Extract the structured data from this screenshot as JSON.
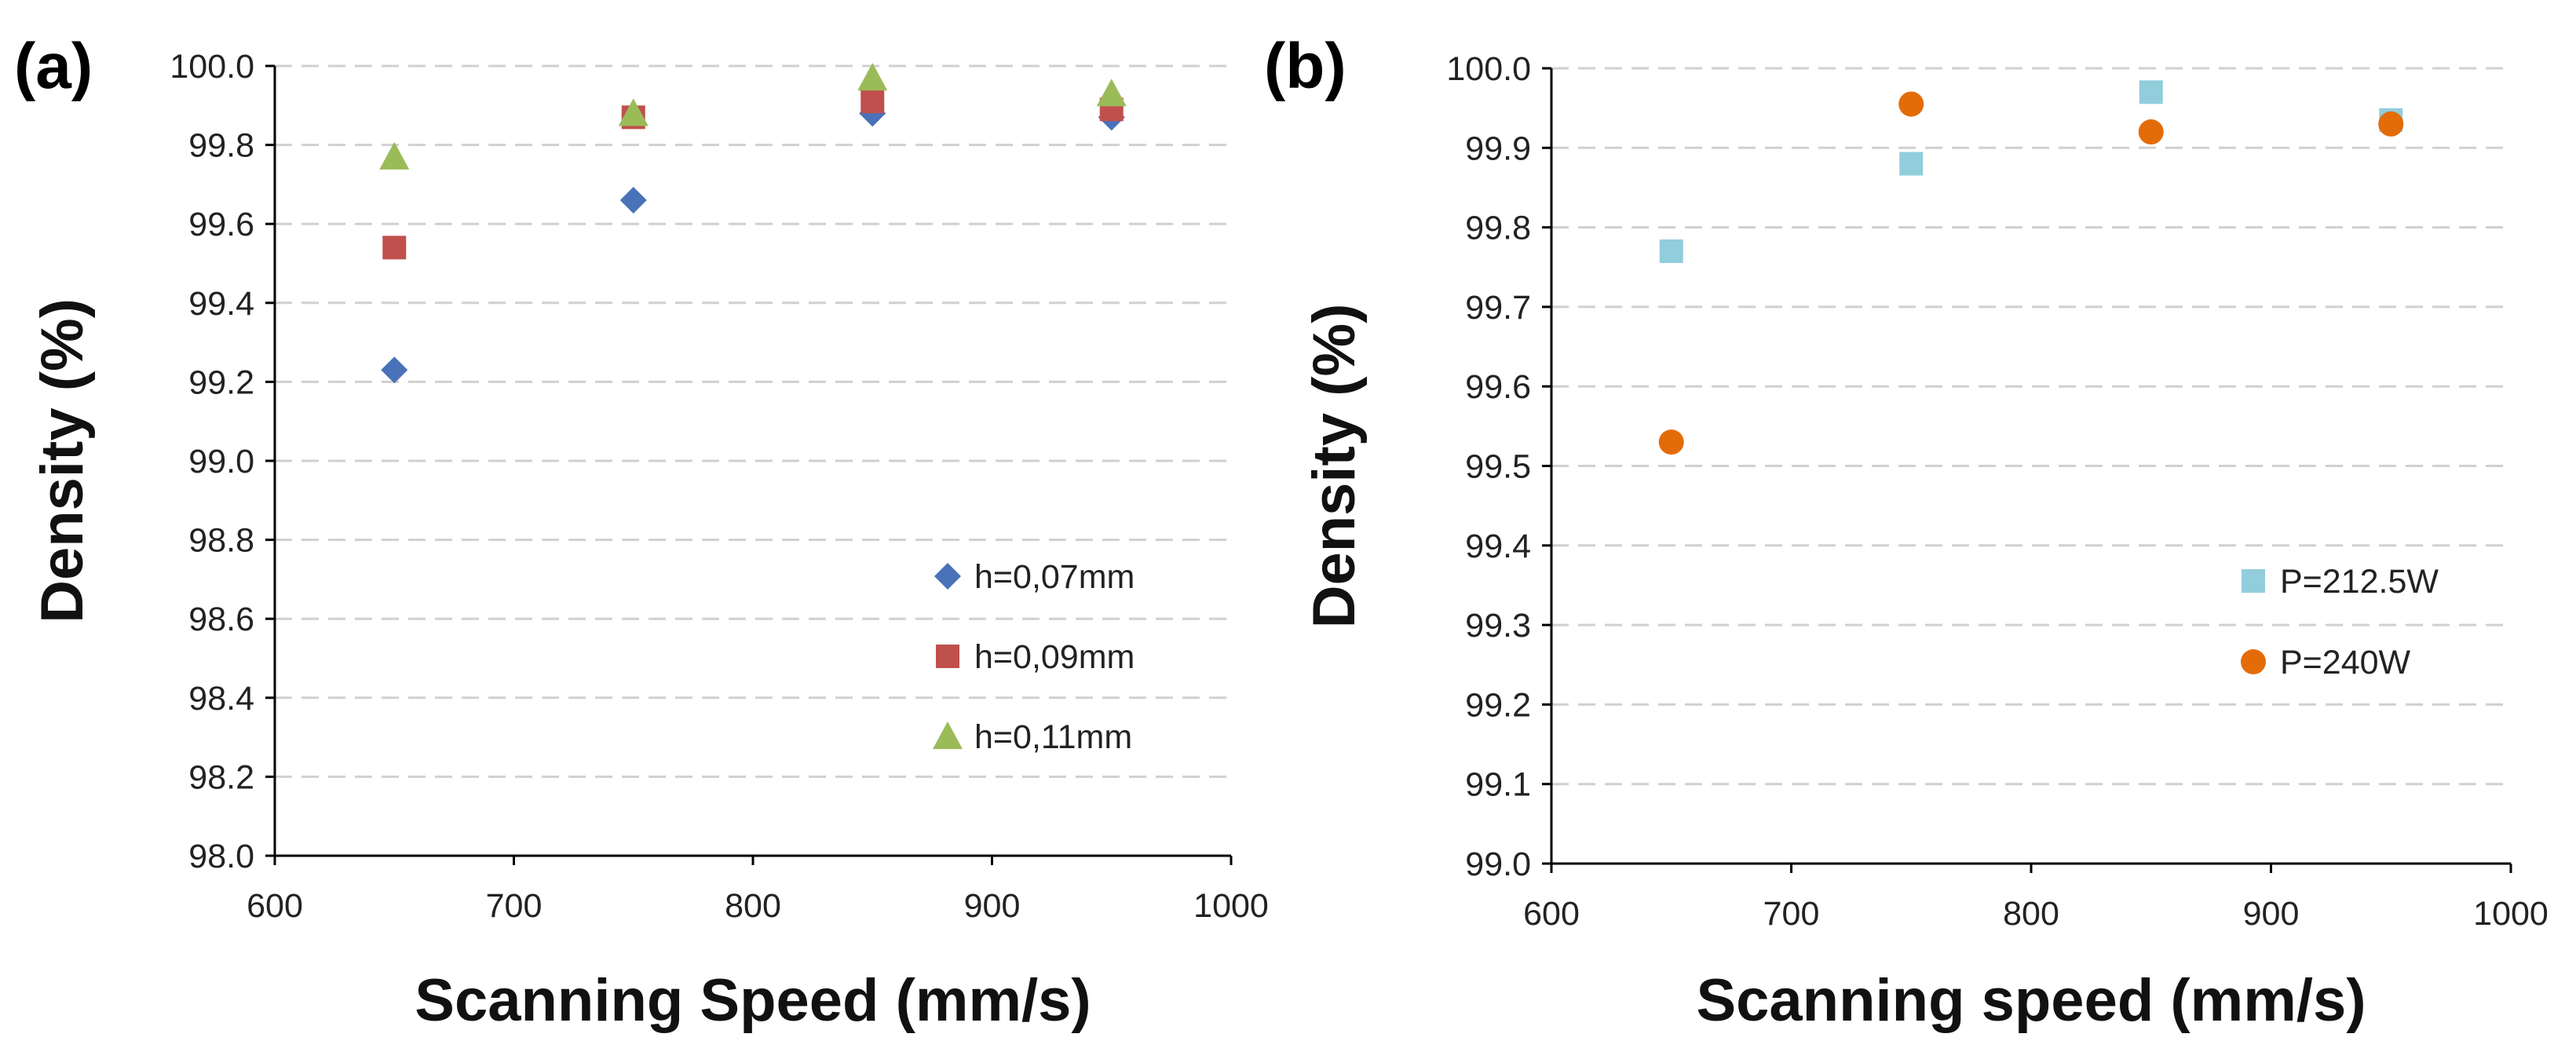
{
  "chart_data": [
    {
      "id": "a",
      "type": "scatter",
      "panel_label": "(a)",
      "xlabel": "Scanning Speed (mm/s)",
      "ylabel": "Density (%)",
      "xlim": [
        600,
        1000
      ],
      "ylim": [
        98.0,
        100.0
      ],
      "xticks": [
        600,
        700,
        800,
        900,
        1000
      ],
      "yticks": [
        98.0,
        98.2,
        98.4,
        98.6,
        98.8,
        99.0,
        99.2,
        99.4,
        99.6,
        99.8,
        100.0
      ],
      "ytick_decimals": 1,
      "grid": "horizontal-dashed",
      "legend_position": "lower-right",
      "series": [
        {
          "name": "h=0,07mm",
          "marker": "diamond",
          "color": "#4a72b8",
          "x": [
            650,
            750,
            850,
            950
          ],
          "y": [
            99.23,
            99.66,
            99.88,
            99.87
          ]
        },
        {
          "name": "h=0,09mm",
          "marker": "square",
          "color": "#c0504d",
          "x": [
            650,
            750,
            850,
            950
          ],
          "y": [
            99.54,
            99.87,
            99.91,
            99.89
          ]
        },
        {
          "name": "h=0,11mm",
          "marker": "triangle",
          "color": "#9bbb59",
          "x": [
            650,
            750,
            850,
            950
          ],
          "y": [
            99.77,
            99.88,
            99.97,
            99.93
          ]
        }
      ]
    },
    {
      "id": "b",
      "type": "scatter",
      "panel_label": "(b)",
      "xlabel": "Scanning speed (mm/s)",
      "ylabel": "Density (%)",
      "xlim": [
        600,
        1000
      ],
      "ylim": [
        99.0,
        100.0
      ],
      "xticks": [
        600,
        700,
        800,
        900,
        1000
      ],
      "yticks": [
        99.0,
        99.1,
        99.2,
        99.3,
        99.4,
        99.5,
        99.6,
        99.7,
        99.8,
        99.9,
        100.0
      ],
      "ytick_decimals": 1,
      "grid": "horizontal-dashed",
      "legend_position": "lower-right",
      "series": [
        {
          "name": "P=212.5W",
          "marker": "square",
          "color": "#92cddc",
          "x": [
            650,
            750,
            850,
            950
          ],
          "y": [
            99.77,
            99.88,
            99.97,
            99.935
          ]
        },
        {
          "name": "P=240W",
          "marker": "circle",
          "color": "#e36c09",
          "x": [
            650,
            750,
            850,
            950
          ],
          "y": [
            99.53,
            99.955,
            99.92,
            99.93
          ]
        }
      ]
    }
  ]
}
